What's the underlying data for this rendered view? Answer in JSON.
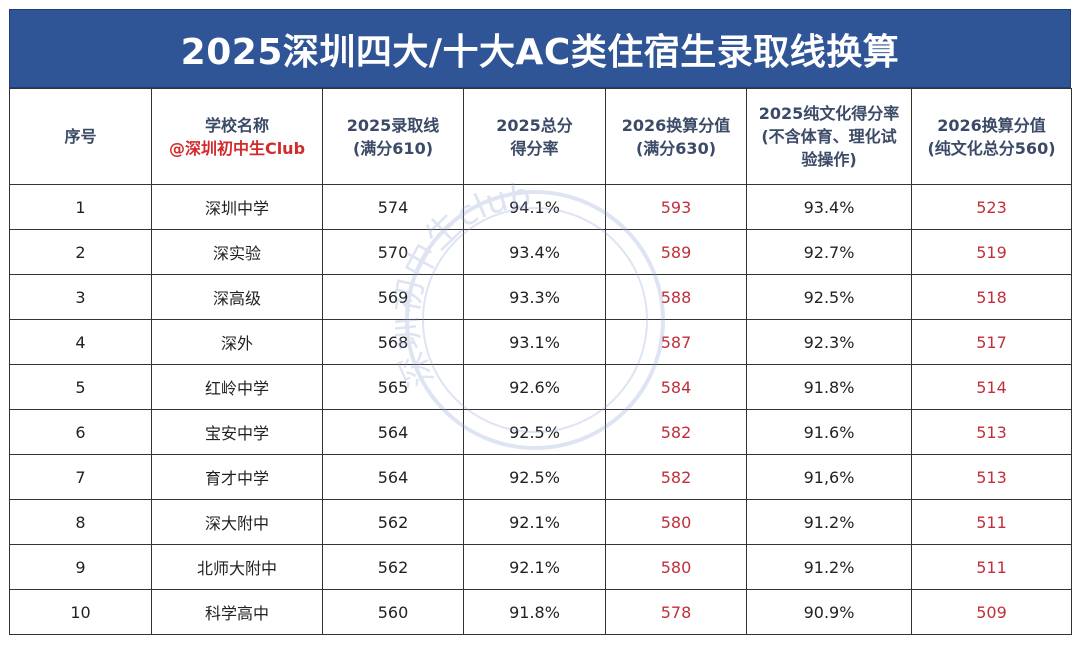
{
  "title": "2025深圳四大/十大AC类住宿生录取线换算",
  "headers": [
    {
      "line1": "序号",
      "line2": ""
    },
    {
      "line1": "学校名称",
      "line2": "@深圳初中生Club"
    },
    {
      "line1": "2025录取线",
      "line2": "(满分610)"
    },
    {
      "line1": "2025总分",
      "line2": "得分率"
    },
    {
      "line1": "2026换算分值",
      "line2": "(满分630)"
    },
    {
      "line1": "2025纯文化得分率",
      "line2": "(不含体育、理化试验操作)"
    },
    {
      "line1": "2026换算分值",
      "line2": "(纯文化总分560)"
    }
  ],
  "rows": [
    [
      "1",
      "深圳中学",
      "574",
      "94.1%",
      "593",
      "93.4%",
      "523"
    ],
    [
      "2",
      "深实验",
      "570",
      "93.4%",
      "589",
      "92.7%",
      "519"
    ],
    [
      "3",
      "深高级",
      "569",
      "93.3%",
      "588",
      "92.5%",
      "518"
    ],
    [
      "4",
      "深外",
      "568",
      "93.1%",
      "587",
      "92.3%",
      "517"
    ],
    [
      "5",
      "红岭中学",
      "565",
      "92.6%",
      "584",
      "91.8%",
      "514"
    ],
    [
      "6",
      "宝安中学",
      "564",
      "92.5%",
      "582",
      "91.6%",
      "513"
    ],
    [
      "7",
      "育才中学",
      "564",
      "92.5%",
      "582",
      "91,6%",
      "513"
    ],
    [
      "8",
      "深大附中",
      "562",
      "92.1%",
      "580",
      "91.2%",
      "511"
    ],
    [
      "9",
      "北师大附中",
      "562",
      "92.1%",
      "580",
      "91.2%",
      "511"
    ],
    [
      "10",
      "科学高中",
      "560",
      "91.8%",
      "578",
      "90.9%",
      "509"
    ]
  ],
  "watermark": "深圳初中生club",
  "colors": {
    "title_bg": "#2f5597",
    "header_text": "#3b4a66",
    "highlight": "#c0303a"
  }
}
